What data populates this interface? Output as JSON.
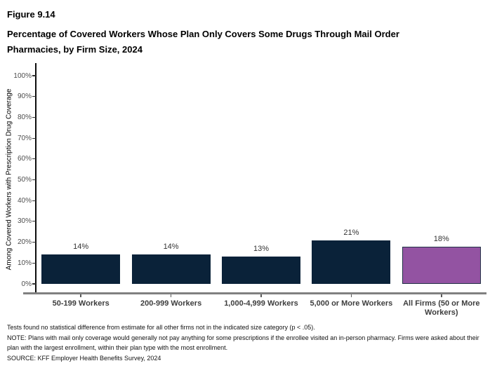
{
  "header": {
    "figure_label": "Figure 9.14",
    "title_lines": [
      "Percentage of Covered Workers Whose Plan Only Covers Some Drugs Through Mail Order",
      "Pharmacies, by Firm Size, 2024"
    ]
  },
  "chart_data": {
    "type": "bar",
    "title": "Percentage of Covered Workers Whose Plan Only Covers Some Drugs Through Mail Order Pharmacies, by Firm Size, 2024",
    "categories": [
      "50-199 Workers",
      "200-999 Workers",
      "1,000-4,999 Workers",
      "5,000 or More Workers",
      "All Firms (50 or More Workers)"
    ],
    "category_label_lines": [
      [
        "50-199 Workers"
      ],
      [
        "200-999 Workers"
      ],
      [
        "1,000-4,999 Workers"
      ],
      [
        "5,000 or More Workers"
      ],
      [
        "All Firms (50 or More",
        "Workers)"
      ]
    ],
    "values": [
      14,
      14,
      13,
      21,
      18
    ],
    "value_labels": [
      "14%",
      "14%",
      "13%",
      "21%",
      "18%"
    ],
    "xlabel": "",
    "ylabel": "Among Covered Workers with Prescription Drug Coverage",
    "ylim": [
      0,
      100
    ],
    "ytick_labels": [
      "0%",
      "10%",
      "20%",
      "30%",
      "40%",
      "50%",
      "60%",
      "70%",
      "80%",
      "90%",
      "100%"
    ],
    "grid": false,
    "legend": false,
    "colors": {
      "bar_fill": [
        "#0A2239",
        "#0A2239",
        "#0A2239",
        "#0A2239",
        "#9353A2"
      ],
      "highlight_border": "#233447",
      "axis_line": "#0d0d0d",
      "baseline": "#808080",
      "tick_label": "#4d4d4d",
      "value_label": "#333333",
      "category_label": "#3d3d3d"
    }
  },
  "footnotes": {
    "stat_note": "Tests found no statistical difference from estimate for all other firms not in the indicated size category (p < .05).",
    "note": "NOTE: Plans with mail only coverage would generally not pay anything for some prescriptions if the enrollee visited an in-person pharmacy.  Firms were asked about their plan with the largest enrollment, within their plan type with the most enrollment.",
    "source": "SOURCE: KFF Employer Health Benefits Survey, 2024"
  }
}
